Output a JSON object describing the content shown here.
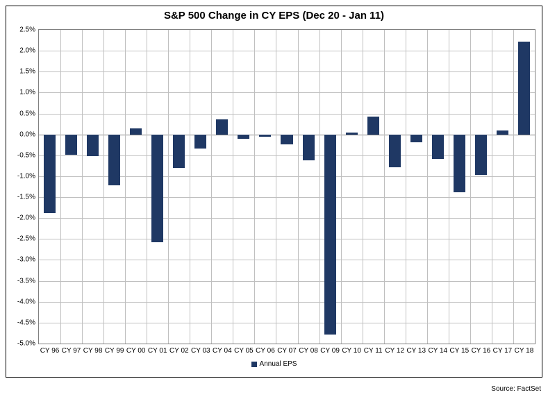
{
  "chart": {
    "type": "bar",
    "title": "S&P 500 Change in CY EPS (Dec 20 - Jan 11)",
    "title_fontsize": 15,
    "title_color": "#000000",
    "categories": [
      "CY 96",
      "CY 97",
      "CY 98",
      "CY 99",
      "CY 00",
      "CY 01",
      "CY 02",
      "CY 03",
      "CY 04",
      "CY 05",
      "CY 06",
      "CY 07",
      "CY 08",
      "CY 09",
      "CY 10",
      "CY 11",
      "CY 12",
      "CY 13",
      "CY 14",
      "CY 15",
      "CY 16",
      "CY 17",
      "CY 18"
    ],
    "values": [
      -1.88,
      -0.48,
      -0.52,
      -1.22,
      0.14,
      -2.58,
      -0.8,
      -0.34,
      0.36,
      -0.1,
      -0.06,
      -0.24,
      -0.62,
      -4.78,
      0.04,
      0.42,
      -0.78,
      -0.18,
      -0.58,
      -1.38,
      -0.96,
      0.1,
      2.22
    ],
    "bar_color": "#1f3864",
    "bar_width": 0.55,
    "ylim": [
      -5.0,
      2.5
    ],
    "ytick_step": 0.5,
    "ytick_format_suffix": "%",
    "ytick_decimals": 1,
    "grid_color": "#bfbfbf",
    "cat_line_color": "#bfbfbf",
    "axis_border_color": "#808080",
    "zero_line_color": "#808080",
    "label_fontsize": 10,
    "label_color": "#000000",
    "legend_label": "Annual EPS",
    "legend_fontsize": 10,
    "source_text": "Source: FactSet",
    "source_fontsize": 10,
    "source_color": "#000000",
    "background_color": "#ffffff"
  }
}
